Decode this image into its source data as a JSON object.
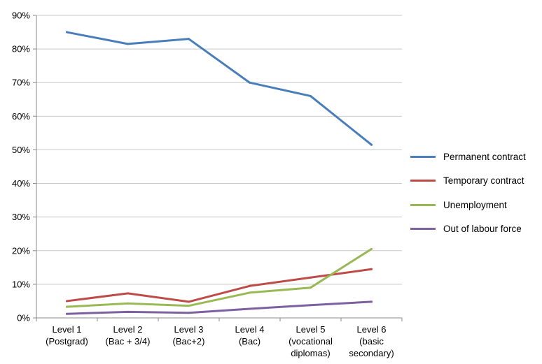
{
  "chart_data": {
    "type": "line",
    "categories": [
      [
        "Level 1",
        "(Postgrad)"
      ],
      [
        "Level 2",
        "(Bac + 3/4)"
      ],
      [
        "Level 3",
        "(Bac+2)"
      ],
      [
        "Level 4",
        "(Bac)"
      ],
      [
        "Level 5",
        "(vocational",
        "diplomas)"
      ],
      [
        "Level 6",
        "(basic",
        "secondary)"
      ]
    ],
    "series": [
      {
        "name": "Permanent contract",
        "color": "#4a7ebb",
        "values": [
          85,
          81.5,
          83,
          70,
          66,
          51.5
        ]
      },
      {
        "name": "Temporary contract",
        "color": "#be4b48",
        "values": [
          5,
          7.3,
          4.8,
          9.5,
          12,
          14.5
        ]
      },
      {
        "name": "Unemployment",
        "color": "#98b954",
        "values": [
          3.3,
          4.3,
          3.6,
          7.5,
          9,
          20.5
        ]
      },
      {
        "name": "Out of labour force",
        "color": "#7d60a0",
        "values": [
          1.2,
          1.8,
          1.5,
          2.7,
          3.8,
          4.8
        ]
      }
    ],
    "y_ticks": [
      "0%",
      "10%",
      "20%",
      "30%",
      "40%",
      "50%",
      "60%",
      "70%",
      "80%",
      "90%"
    ],
    "ylim": [
      0,
      90
    ],
    "y_step": 10,
    "grid": true,
    "legend_position": "right"
  }
}
